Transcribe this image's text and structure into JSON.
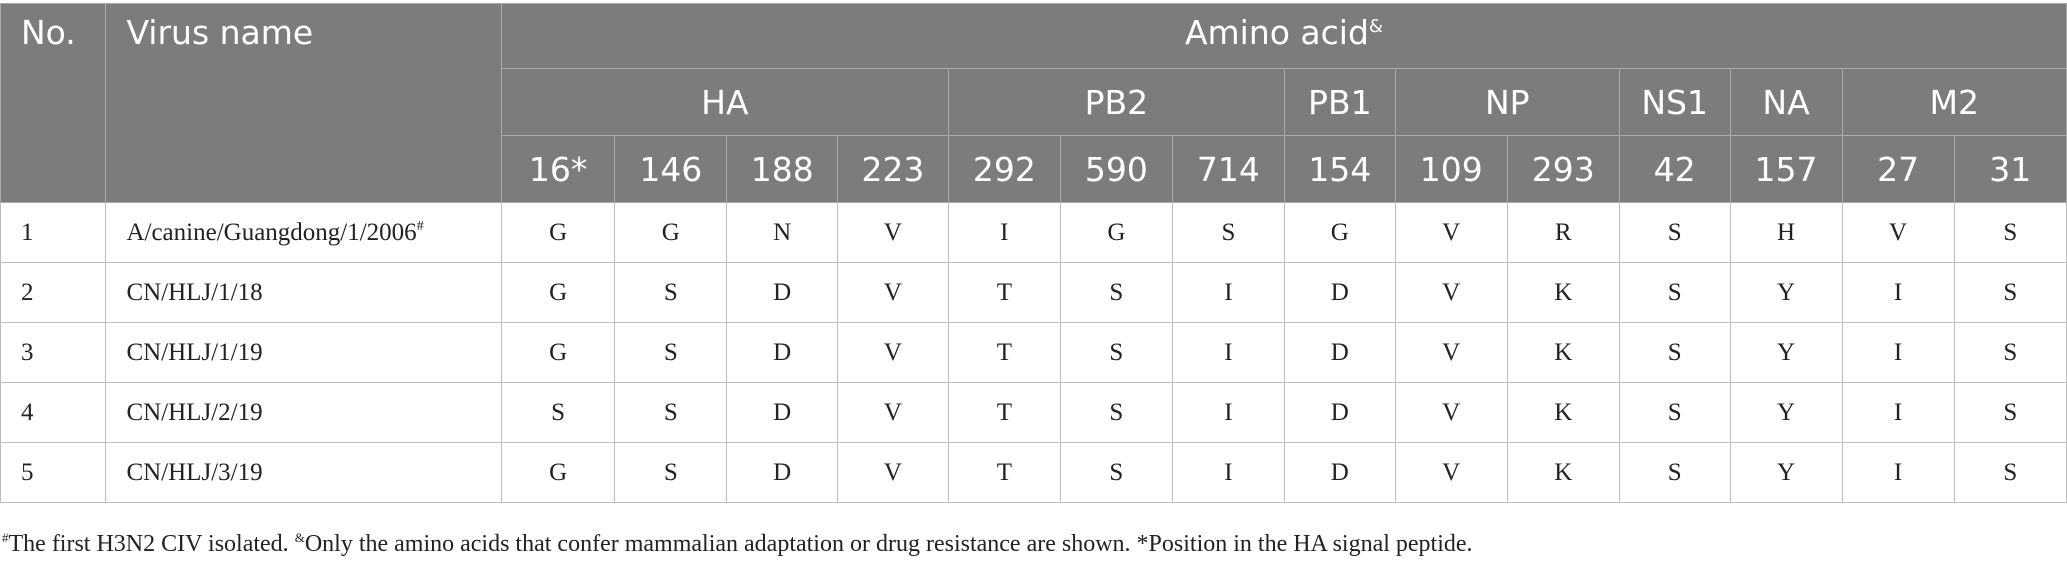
{
  "header": {
    "no": "No.",
    "virus_name": "Virus name",
    "amino_acid": "Amino acid",
    "amino_acid_mark": "&",
    "groups": [
      {
        "name": "HA",
        "positions": [
          "16",
          "146",
          "188",
          "223"
        ]
      },
      {
        "name": "PB2",
        "positions": [
          "292",
          "590",
          "714"
        ]
      },
      {
        "name": "PB1",
        "positions": [
          "154"
        ]
      },
      {
        "name": "NP",
        "positions": [
          "109",
          "293"
        ]
      },
      {
        "name": "NS1",
        "positions": [
          "42"
        ]
      },
      {
        "name": "NA",
        "positions": [
          "157"
        ]
      },
      {
        "name": "M2",
        "positions": [
          "27",
          "31"
        ]
      }
    ],
    "ha16_mark": "*"
  },
  "rows": [
    {
      "no": "1",
      "name": "A/canine/Guangdong/1/2006",
      "mark": "#",
      "values": [
        "G",
        "G",
        "N",
        "V",
        "I",
        "G",
        "S",
        "G",
        "V",
        "R",
        "S",
        "H",
        "V",
        "S"
      ]
    },
    {
      "no": "2",
      "name": "CN/HLJ/1/18",
      "mark": "",
      "values": [
        "G",
        "S",
        "D",
        "V",
        "T",
        "S",
        "I",
        "D",
        "V",
        "K",
        "S",
        "Y",
        "I",
        "S"
      ]
    },
    {
      "no": "3",
      "name": "CN/HLJ/1/19",
      "mark": "",
      "values": [
        "G",
        "S",
        "D",
        "V",
        "T",
        "S",
        "I",
        "D",
        "V",
        "K",
        "S",
        "Y",
        "I",
        "S"
      ]
    },
    {
      "no": "4",
      "name": "CN/HLJ/2/19",
      "mark": "",
      "values": [
        "S",
        "S",
        "D",
        "V",
        "T",
        "S",
        "I",
        "D",
        "V",
        "K",
        "S",
        "Y",
        "I",
        "S"
      ]
    },
    {
      "no": "5",
      "name": "CN/HLJ/3/19",
      "mark": "",
      "values": [
        "G",
        "S",
        "D",
        "V",
        "T",
        "S",
        "I",
        "D",
        "V",
        "K",
        "S",
        "Y",
        "I",
        "S"
      ]
    }
  ],
  "footnote": {
    "mark1": "#",
    "text1": "The first H3N2 CIV isolated. ",
    "mark2": "&",
    "text2": "Only the amino acids that confer mammalian adaptation or drug resistance are shown. ",
    "text3": "*Position in the HA signal peptide."
  }
}
